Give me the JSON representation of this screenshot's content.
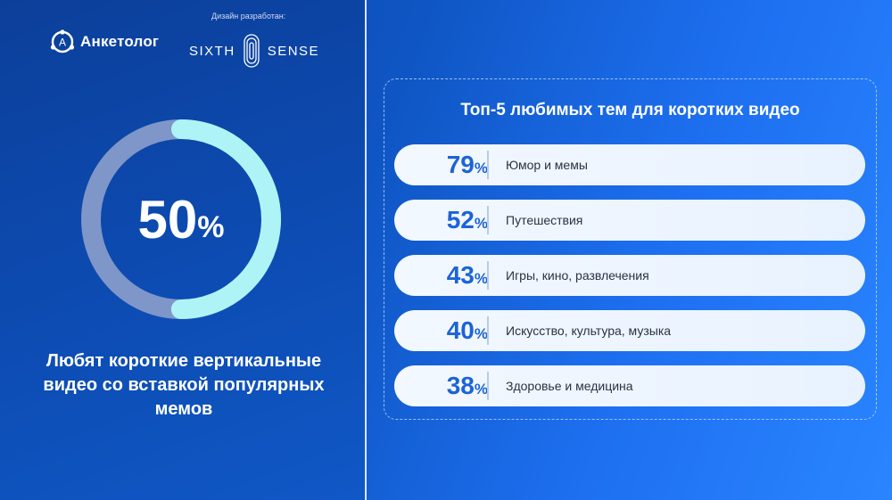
{
  "brand": {
    "name": "Анкетолог",
    "designed_by": "Дизайн разработан:",
    "partner_left": "SIXTH",
    "partner_right": "SENSE"
  },
  "colors": {
    "accent": "#1c63d8",
    "ring_fill": "#aef4f6",
    "ring_track": "#7f96c9",
    "row_bg": "#eef5ff"
  },
  "summary": {
    "value": "50",
    "unit": "%",
    "caption": "Любят короткие вертикальные видео со вставкой популярных мемов"
  },
  "chart_data": [
    {
      "type": "pie",
      "values": [
        50,
        50
      ],
      "value_label": "50%"
    },
    {
      "type": "bar",
      "title": "Топ-5 любимых тем для коротких видео",
      "categories": [
        "Юмор и мемы",
        "Путешествия",
        "Игры, кино, развлечения",
        "Искусство, культура, музыка",
        "Здоровье и медицина"
      ],
      "values": [
        79,
        52,
        43,
        40,
        38
      ],
      "unit": "%"
    }
  ]
}
